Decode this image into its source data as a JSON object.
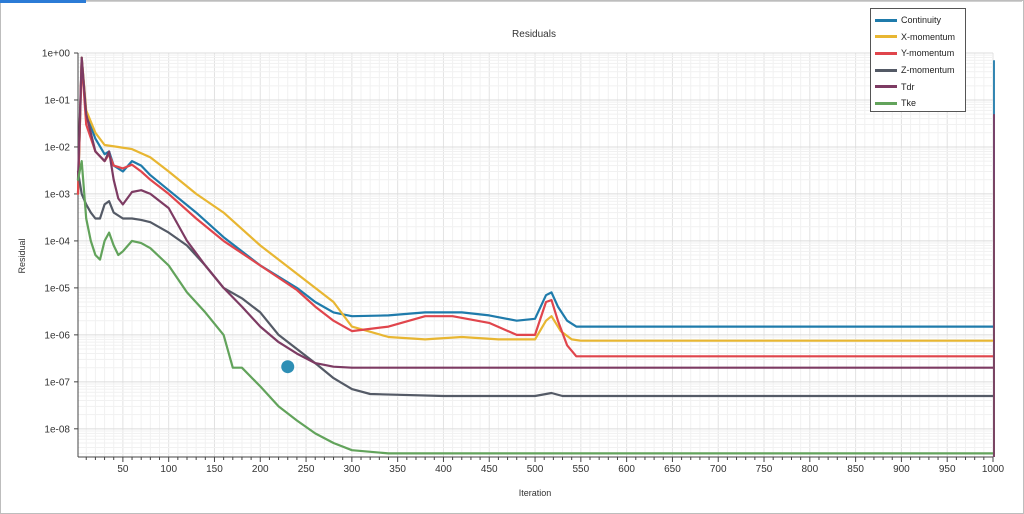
{
  "chart_data": {
    "type": "line",
    "title": "Residuals",
    "xlabel": "Iteration",
    "ylabel": "Residual",
    "xlim": [
      1,
      1000
    ],
    "ylim_exp": [
      -8.6,
      0
    ],
    "yscale": "log",
    "grid": true,
    "legend_position": "top-right",
    "x_ticks": [
      50,
      100,
      150,
      200,
      250,
      300,
      350,
      400,
      450,
      500,
      550,
      600,
      650,
      700,
      750,
      800,
      850,
      900,
      950,
      1000
    ],
    "y_ticks": [
      {
        "exp": 0,
        "label": "1e+00"
      },
      {
        "exp": -1,
        "label": "1e-01"
      },
      {
        "exp": -2,
        "label": "1e-02"
      },
      {
        "exp": -3,
        "label": "1e-03"
      },
      {
        "exp": -4,
        "label": "1e-04"
      },
      {
        "exp": -5,
        "label": "1e-05"
      },
      {
        "exp": -6,
        "label": "1e-06"
      },
      {
        "exp": -7,
        "label": "1e-07"
      },
      {
        "exp": -8,
        "label": "1e-08"
      }
    ],
    "marker": {
      "x": 230,
      "value": 2.1e-07,
      "color": "#2e8fb5"
    },
    "series": [
      {
        "name": "Continuity",
        "color": "#1f7bab",
        "points": [
          [
            1,
            0.001
          ],
          [
            5,
            0.8
          ],
          [
            10,
            0.05
          ],
          [
            20,
            0.015
          ],
          [
            30,
            0.007
          ],
          [
            35,
            0.008
          ],
          [
            40,
            0.004
          ],
          [
            50,
            0.003
          ],
          [
            60,
            0.005
          ],
          [
            70,
            0.004
          ],
          [
            80,
            0.0025
          ],
          [
            100,
            0.0012
          ],
          [
            130,
            0.0004
          ],
          [
            160,
            0.00012
          ],
          [
            200,
            3e-05
          ],
          [
            240,
            1e-05
          ],
          [
            260,
            5e-06
          ],
          [
            280,
            3e-06
          ],
          [
            300,
            2.5e-06
          ],
          [
            340,
            2.6e-06
          ],
          [
            380,
            3e-06
          ],
          [
            420,
            3e-06
          ],
          [
            450,
            2.6e-06
          ],
          [
            480,
            2e-06
          ],
          [
            500,
            2.2e-06
          ],
          [
            512,
            7e-06
          ],
          [
            518,
            8e-06
          ],
          [
            525,
            4e-06
          ],
          [
            535,
            2e-06
          ],
          [
            545,
            1.5e-06
          ],
          [
            1000,
            1.5e-06
          ]
        ]
      },
      {
        "name": "X-momentum",
        "color": "#e8b632",
        "points": [
          [
            1,
            0.001
          ],
          [
            5,
            0.8
          ],
          [
            10,
            0.06
          ],
          [
            20,
            0.02
          ],
          [
            30,
            0.011
          ],
          [
            45,
            0.01
          ],
          [
            60,
            0.009
          ],
          [
            80,
            0.006
          ],
          [
            100,
            0.003
          ],
          [
            130,
            0.001
          ],
          [
            160,
            0.0004
          ],
          [
            200,
            8e-05
          ],
          [
            240,
            2e-05
          ],
          [
            280,
            5e-06
          ],
          [
            300,
            1.5e-06
          ],
          [
            340,
            9e-07
          ],
          [
            380,
            8e-07
          ],
          [
            420,
            9e-07
          ],
          [
            460,
            8e-07
          ],
          [
            500,
            8e-07
          ],
          [
            512,
            2e-06
          ],
          [
            518,
            2.5e-06
          ],
          [
            528,
            1.2e-06
          ],
          [
            540,
            8e-07
          ],
          [
            550,
            7.5e-07
          ],
          [
            1000,
            7.5e-07
          ]
        ]
      },
      {
        "name": "Y-momentum",
        "color": "#e0454c",
        "points": [
          [
            1,
            0.001
          ],
          [
            5,
            0.7
          ],
          [
            10,
            0.03
          ],
          [
            20,
            0.008
          ],
          [
            30,
            0.005
          ],
          [
            35,
            0.007
          ],
          [
            40,
            0.004
          ],
          [
            50,
            0.0035
          ],
          [
            60,
            0.0042
          ],
          [
            70,
            0.003
          ],
          [
            80,
            0.002
          ],
          [
            100,
            0.001
          ],
          [
            130,
            0.0003
          ],
          [
            160,
            0.0001
          ],
          [
            200,
            3e-05
          ],
          [
            240,
            9e-06
          ],
          [
            260,
            4e-06
          ],
          [
            280,
            2e-06
          ],
          [
            300,
            1.2e-06
          ],
          [
            340,
            1.5e-06
          ],
          [
            380,
            2.5e-06
          ],
          [
            410,
            2.5e-06
          ],
          [
            450,
            1.8e-06
          ],
          [
            480,
            1e-06
          ],
          [
            500,
            1e-06
          ],
          [
            512,
            5e-06
          ],
          [
            518,
            5.5e-06
          ],
          [
            525,
            2e-06
          ],
          [
            535,
            6e-07
          ],
          [
            545,
            3.5e-07
          ],
          [
            1000,
            3.5e-07
          ]
        ]
      },
      {
        "name": "Z-momentum",
        "color": "#545a66",
        "points": [
          [
            1,
            0.003
          ],
          [
            5,
            0.001
          ],
          [
            10,
            0.0006
          ],
          [
            15,
            0.0004
          ],
          [
            20,
            0.0003
          ],
          [
            25,
            0.0003
          ],
          [
            30,
            0.0006
          ],
          [
            35,
            0.0007
          ],
          [
            40,
            0.0004
          ],
          [
            50,
            0.0003
          ],
          [
            60,
            0.0003
          ],
          [
            70,
            0.00028
          ],
          [
            80,
            0.00025
          ],
          [
            100,
            0.00015
          ],
          [
            120,
            8e-05
          ],
          [
            140,
            3e-05
          ],
          [
            160,
            1e-05
          ],
          [
            180,
            6e-06
          ],
          [
            200,
            3e-06
          ],
          [
            220,
            1e-06
          ],
          [
            240,
            5e-07
          ],
          [
            260,
            2.5e-07
          ],
          [
            280,
            1.2e-07
          ],
          [
            300,
            7e-08
          ],
          [
            320,
            5.5e-08
          ],
          [
            400,
            5e-08
          ],
          [
            500,
            5e-08
          ],
          [
            512,
            5.5e-08
          ],
          [
            518,
            5.8e-08
          ],
          [
            530,
            5e-08
          ],
          [
            1000,
            5e-08
          ]
        ]
      },
      {
        "name": "Tdr",
        "color": "#7d3b63",
        "points": [
          [
            1,
            0.002
          ],
          [
            5,
            0.8
          ],
          [
            10,
            0.05
          ],
          [
            20,
            0.008
          ],
          [
            30,
            0.005
          ],
          [
            35,
            0.008
          ],
          [
            40,
            0.002
          ],
          [
            45,
            0.0008
          ],
          [
            50,
            0.0006
          ],
          [
            60,
            0.0011
          ],
          [
            70,
            0.0012
          ],
          [
            80,
            0.001
          ],
          [
            100,
            0.0005
          ],
          [
            120,
            0.0001
          ],
          [
            140,
            3e-05
          ],
          [
            160,
            1e-05
          ],
          [
            180,
            4e-06
          ],
          [
            200,
            1.5e-06
          ],
          [
            220,
            7e-07
          ],
          [
            240,
            4e-07
          ],
          [
            260,
            2.5e-07
          ],
          [
            280,
            2.1e-07
          ],
          [
            300,
            2e-07
          ],
          [
            500,
            2e-07
          ],
          [
            1000,
            2e-07
          ]
        ]
      },
      {
        "name": "Tke",
        "color": "#62a35b",
        "points": [
          [
            1,
            0.002
          ],
          [
            5,
            0.005
          ],
          [
            10,
            0.0003
          ],
          [
            15,
            0.0001
          ],
          [
            20,
            5e-05
          ],
          [
            25,
            4e-05
          ],
          [
            30,
            0.0001
          ],
          [
            35,
            0.00015
          ],
          [
            40,
            8e-05
          ],
          [
            45,
            5e-05
          ],
          [
            50,
            6e-05
          ],
          [
            60,
            0.0001
          ],
          [
            70,
            9e-05
          ],
          [
            80,
            7e-05
          ],
          [
            100,
            3e-05
          ],
          [
            120,
            8e-06
          ],
          [
            140,
            3e-06
          ],
          [
            160,
            1e-06
          ],
          [
            170,
            2e-07
          ],
          [
            180,
            2e-07
          ],
          [
            200,
            8e-08
          ],
          [
            220,
            3e-08
          ],
          [
            240,
            1.5e-08
          ],
          [
            260,
            8e-09
          ],
          [
            280,
            5e-09
          ],
          [
            300,
            3.5e-09
          ],
          [
            340,
            3e-09
          ],
          [
            400,
            3e-09
          ],
          [
            1000,
            3e-09
          ]
        ]
      }
    ]
  }
}
